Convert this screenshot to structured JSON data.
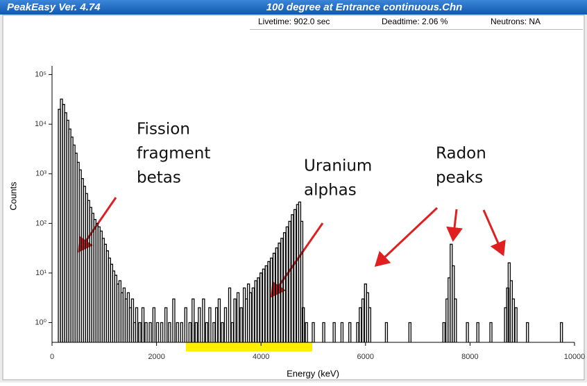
{
  "window": {
    "app_title": "PeakEasy Ver. 4.74",
    "file_title": "100 degree at Entrance continuous.Chn",
    "livetime": "Livetime: 902.0 sec",
    "deadtime": "Deadtime: 2.06 %",
    "neutrons": "Neutrons: NA"
  },
  "chart_data": {
    "type": "spectrum",
    "log_y": true,
    "color": "#000000",
    "xlabel": "Energy (keV)",
    "ylabel": "Counts",
    "xlim": [
      0,
      10000
    ],
    "ylim": [
      0.4,
      150000
    ],
    "xticks": [
      0,
      2000,
      4000,
      6000,
      8000,
      10000
    ],
    "yticks": [
      {
        "value": 1,
        "label": "10⁰"
      },
      {
        "value": 10,
        "label": "10¹"
      },
      {
        "value": 100,
        "label": "10²"
      },
      {
        "value": 1000,
        "label": "10³"
      },
      {
        "value": 10000,
        "label": "10⁴"
      },
      {
        "value": 100000,
        "label": "10⁵"
      }
    ],
    "x": [
      140,
      180,
      220,
      260,
      300,
      340,
      380,
      420,
      460,
      500,
      540,
      580,
      620,
      660,
      700,
      740,
      780,
      820,
      860,
      900,
      940,
      980,
      1020,
      1060,
      1100,
      1140,
      1180,
      1220,
      1260,
      1300,
      1340,
      1380,
      1420,
      1460,
      1500,
      1540,
      1580,
      1620,
      1680,
      1740,
      1800,
      1880,
      1950,
      2020,
      2100,
      2180,
      2250,
      2330,
      2400,
      2480,
      2560,
      2640,
      2700,
      2760,
      2820,
      2900,
      2960,
      3020,
      3100,
      3150,
      3200,
      3260,
      3320,
      3400,
      3450,
      3500,
      3560,
      3620,
      3680,
      3720,
      3760,
      3800,
      3850,
      3900,
      3950,
      4000,
      4050,
      4100,
      4150,
      4200,
      4250,
      4300,
      4350,
      4400,
      4450,
      4500,
      4550,
      4600,
      4650,
      4700,
      4740,
      4780,
      4810,
      4870,
      5000,
      5200,
      5400,
      5550,
      5700,
      5850,
      5900,
      5950,
      6000,
      6040,
      6080,
      6400,
      6850,
      7500,
      7560,
      7600,
      7640,
      7680,
      7720,
      7950,
      8150,
      8400,
      8680,
      8720,
      8750,
      8790,
      8830,
      8880,
      9100,
      9750
    ],
    "values": [
      20000,
      32000,
      25000,
      17000,
      12000,
      8000,
      5500,
      3800,
      2600,
      1700,
      1200,
      800,
      560,
      400,
      290,
      210,
      160,
      120,
      100,
      85,
      70,
      50,
      38,
      28,
      20,
      15,
      11,
      9,
      6,
      7,
      4,
      5,
      3,
      4,
      2,
      3,
      1,
      2,
      1,
      2,
      1,
      1,
      2,
      1,
      1,
      2,
      1,
      3,
      1,
      1,
      2,
      1,
      3,
      1,
      2,
      3,
      1,
      2,
      1,
      2,
      3,
      1,
      2,
      5,
      1,
      3,
      4,
      2,
      5,
      3,
      6,
      4,
      5,
      7,
      8,
      10,
      12,
      14,
      17,
      20,
      25,
      32,
      40,
      50,
      65,
      85,
      110,
      150,
      190,
      240,
      270,
      110,
      2,
      1,
      1,
      1,
      1,
      1,
      1,
      1,
      2,
      3,
      6,
      4,
      2,
      1,
      1,
      1,
      3,
      8,
      38,
      14,
      3,
      1,
      1,
      1,
      2,
      5,
      16,
      7,
      3,
      2,
      1,
      1
    ],
    "annotations": [
      {
        "lines": [
          "Fission",
          "fragment",
          "betas"
        ]
      },
      {
        "lines": [
          "Uranium",
          "alphas"
        ]
      },
      {
        "lines": [
          "Radon",
          "peaks"
        ]
      }
    ]
  }
}
